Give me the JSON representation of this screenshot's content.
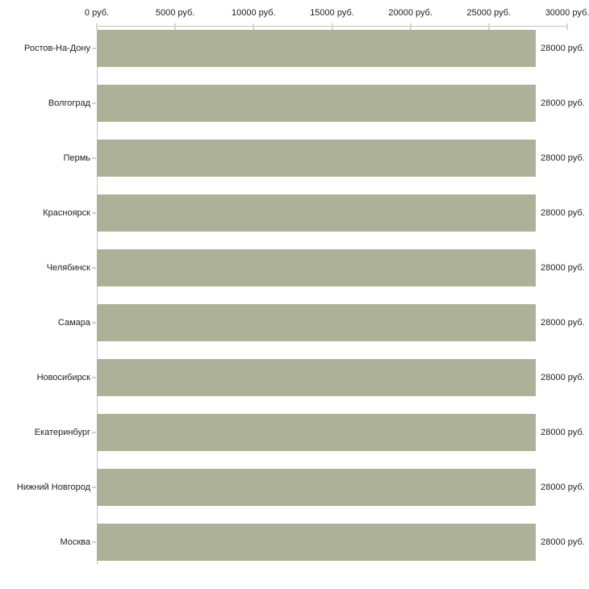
{
  "chart_data": {
    "type": "bar",
    "orientation": "horizontal",
    "title": "",
    "xlabel": "",
    "ylabel": "",
    "unit": "руб.",
    "xlim": [
      0,
      30000
    ],
    "x_ticks": [
      0,
      5000,
      10000,
      15000,
      20000,
      25000,
      30000
    ],
    "x_tick_labels": [
      "0 руб.",
      "5000 руб.",
      "10000 руб.",
      "15000 руб.",
      "20000 руб.",
      "25000 руб.",
      "30000 руб."
    ],
    "axis_position": "top",
    "grid": false,
    "legend": false,
    "categories": [
      "Ростов-На-Дону",
      "Волгоград",
      "Пермь",
      "Красноярск",
      "Челябинск",
      "Самара",
      "Новосибирск",
      "Екатеринбург",
      "Нижний Новгород",
      "Москва"
    ],
    "values": [
      28000,
      28000,
      28000,
      28000,
      28000,
      28000,
      28000,
      28000,
      28000,
      28000
    ],
    "value_labels": [
      "28000 руб.",
      "28000 руб.",
      "28000 руб.",
      "28000 руб.",
      "28000 руб.",
      "28000 руб.",
      "28000 руб.",
      "28000 руб.",
      "28000 руб.",
      "28000 руб."
    ],
    "colors": {
      "bar": "#acb197",
      "axis_line": "#c4c4c4",
      "tick": "#d8dab5",
      "text": "#1e1e1e",
      "background": "#ffffff"
    }
  }
}
